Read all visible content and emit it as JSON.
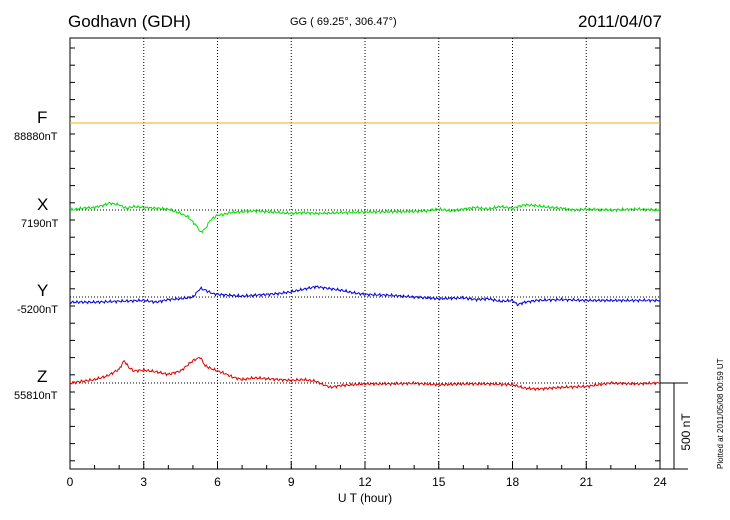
{
  "header": {
    "station": "Godhavn (GDH)",
    "coords": "GG ( 69.25°, 306.47°)",
    "date": "2011/04/07",
    "plotted": "Plotted at 2011/05/08 00:59 UT"
  },
  "chart_data": {
    "type": "line",
    "xlabel": "U T (hour)",
    "xlim": [
      0,
      24
    ],
    "xticks": [
      "0",
      "3",
      "6",
      "9",
      "12",
      "15",
      "18",
      "21",
      "24"
    ],
    "scale_label": "500 nT",
    "scale_nT": 500,
    "grid": true,
    "series": [
      {
        "name": "F",
        "baseline_label": "88880nT",
        "baseline_nT": 88880,
        "color": "#f0b000",
        "hours": [
          0,
          24
        ],
        "deviation_nT": [
          0,
          0
        ]
      },
      {
        "name": "X",
        "baseline_label": "7190nT",
        "baseline_nT": 7190,
        "color": "#00e000",
        "hours": [
          0,
          0.5,
          1,
          1.3,
          1.6,
          2,
          2.3,
          2.6,
          3,
          3.5,
          4,
          4.5,
          4.8,
          5,
          5.2,
          5.3,
          5.5,
          5.7,
          6,
          6.3,
          6.5,
          7,
          7.5,
          8,
          8.5,
          9,
          9.5,
          10,
          10.5,
          11,
          12,
          13,
          14,
          14.5,
          15,
          15.5,
          16,
          16.5,
          17,
          17.5,
          18,
          18.5,
          19,
          19.5,
          20,
          20.5,
          21,
          22,
          23,
          24
        ],
        "deviation_nT": [
          0,
          10,
          15,
          25,
          40,
          30,
          10,
          20,
          15,
          10,
          5,
          -20,
          -40,
          -70,
          -100,
          -130,
          -110,
          -60,
          -30,
          -25,
          -15,
          -10,
          -5,
          -10,
          -15,
          -20,
          -15,
          -20,
          -18,
          -15,
          -12,
          -10,
          -8,
          -5,
          5,
          -5,
          5,
          15,
          5,
          20,
          10,
          30,
          25,
          15,
          10,
          0,
          5,
          0,
          5,
          0
        ]
      },
      {
        "name": "Y",
        "baseline_label": "-5200nT",
        "baseline_nT": -5200,
        "color": "#0000e0",
        "hours": [
          0,
          1,
          2,
          3,
          3.5,
          4,
          4.5,
          5,
          5.3,
          5.5,
          5.8,
          6,
          6.5,
          7,
          7.5,
          8,
          8.5,
          9,
          9.5,
          10,
          10.5,
          11,
          11.5,
          12,
          13,
          14,
          15,
          16,
          16.5,
          17,
          17.5,
          18,
          18.2,
          18.5,
          19,
          20,
          21,
          22,
          23,
          24
        ],
        "deviation_nT": [
          -30,
          -30,
          -25,
          -20,
          -30,
          -15,
          -10,
          0,
          50,
          40,
          20,
          15,
          10,
          5,
          10,
          15,
          20,
          30,
          45,
          60,
          50,
          40,
          25,
          15,
          10,
          0,
          -10,
          -5,
          -15,
          -10,
          -25,
          -20,
          -45,
          -30,
          -20,
          -15,
          -20,
          -20,
          -20,
          -20
        ]
      },
      {
        "name": "Z",
        "baseline_label": "55810nT",
        "baseline_nT": 55810,
        "color": "#e00000",
        "hours": [
          0,
          0.5,
          1,
          1.5,
          2,
          2.2,
          2.4,
          2.6,
          3,
          3.5,
          4,
          4.5,
          5,
          5.3,
          5.5,
          5.8,
          6,
          6.3,
          6.6,
          7,
          7.5,
          8,
          8.5,
          9,
          9.5,
          10,
          10.3,
          10.6,
          11,
          11.5,
          12,
          13,
          14,
          15,
          16,
          17,
          18,
          18.5,
          19,
          19.5,
          20,
          21,
          22,
          23,
          24
        ],
        "deviation_nT": [
          0,
          10,
          20,
          40,
          80,
          130,
          90,
          70,
          75,
          65,
          50,
          70,
          130,
          150,
          100,
          80,
          70,
          55,
          35,
          20,
          30,
          25,
          20,
          15,
          20,
          10,
          -10,
          -25,
          -15,
          -10,
          -5,
          -5,
          -2,
          -10,
          -5,
          -5,
          -10,
          -30,
          -35,
          -30,
          -25,
          -20,
          0,
          -5,
          0
        ]
      }
    ]
  }
}
